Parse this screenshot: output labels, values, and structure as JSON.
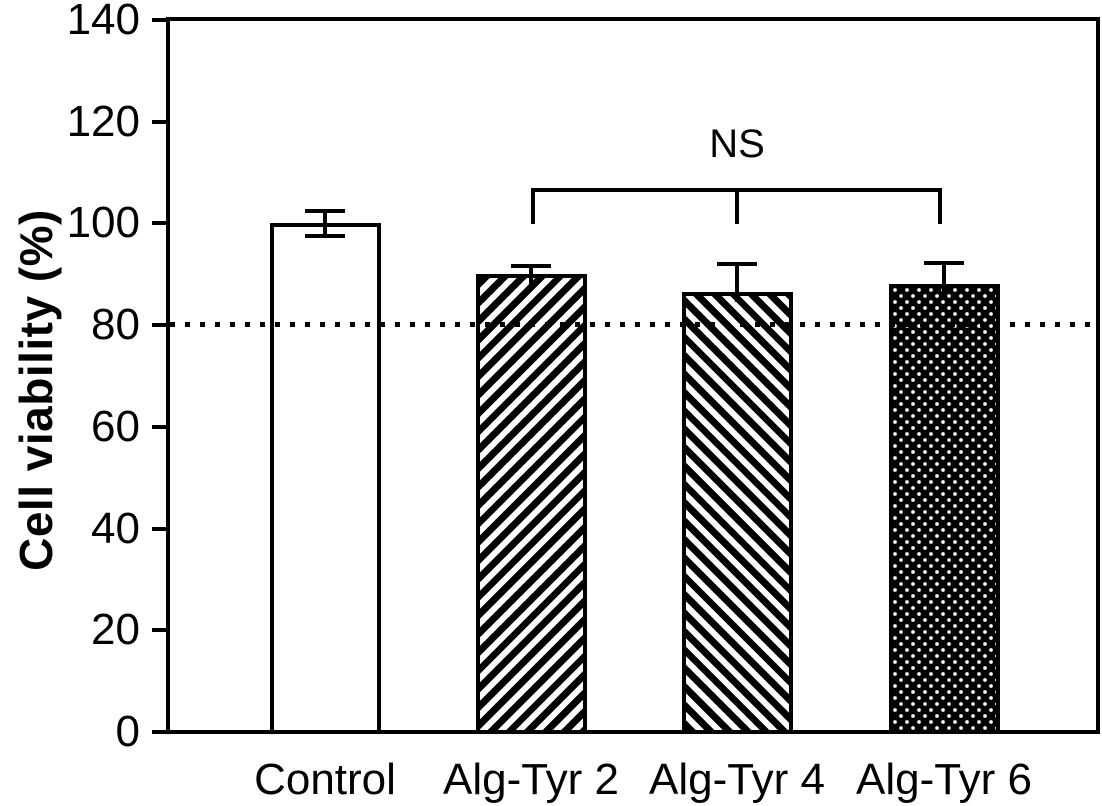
{
  "chart_data": {
    "type": "bar",
    "title": "",
    "xlabel": "",
    "ylabel": "Cell viability (%)",
    "ylim": [
      0,
      140
    ],
    "yticks": [
      140,
      120,
      100,
      80,
      60,
      40,
      20,
      0
    ],
    "categories": [
      "Control",
      "Alg-Tyr 2",
      "Alg-Tyr 4",
      "Alg-Tyr 6"
    ],
    "values": [
      100,
      90,
      86.5,
      88
    ],
    "errors": [
      2.5,
      1.7,
      5.5,
      4.3
    ],
    "lower_cap_visible": [
      true,
      false,
      false,
      false
    ],
    "bar_patterns": [
      "white",
      "diagonal-up",
      "diagonal-down",
      "stipple"
    ],
    "reference_line": {
      "y": 80,
      "style": "dotted"
    },
    "annotation": {
      "text": "NS",
      "from_category": "Alg-Tyr 2",
      "tick_category": "Alg-Tyr 4",
      "to_category": "Alg-Tyr 6"
    },
    "grid": false,
    "frame": true,
    "legend": "none",
    "colors": {
      "bar_border": "#000000",
      "control_fill": "#ffffff",
      "pattern_color": "#000000",
      "text": "#000000",
      "background": "#ffffff"
    }
  }
}
